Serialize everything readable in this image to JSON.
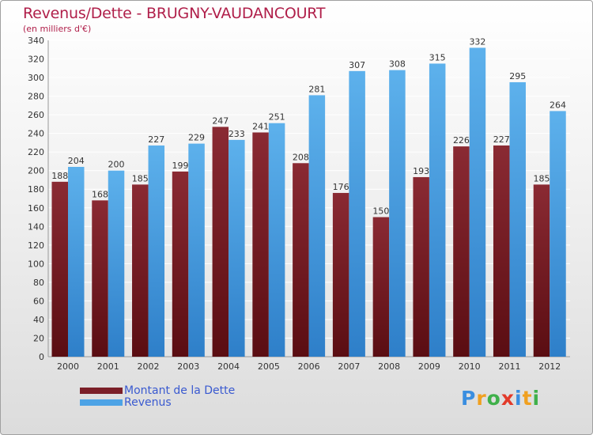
{
  "title": "Revenus/Dette - BRUGNY-VAUDANCOURT",
  "subtitle": "(en milliers d'€)",
  "legend": [
    {
      "label": "Montant de la Dette",
      "color": "#7b1f28"
    },
    {
      "label": "Revenus",
      "color": "#4da3e6"
    }
  ],
  "logo": {
    "text": "Proxiti",
    "letters": [
      {
        "ch": "P",
        "color": "#3a8ee0"
      },
      {
        "ch": "r",
        "color": "#f0a020"
      },
      {
        "ch": "o",
        "color": "#3fb04a"
      },
      {
        "ch": "x",
        "color": "#e23a2a"
      },
      {
        "ch": "i",
        "color": "#3a8ee0"
      },
      {
        "ch": "t",
        "color": "#f0a020"
      },
      {
        "ch": "i",
        "color": "#3fb04a"
      }
    ]
  },
  "colors": {
    "dette_top": "#8a2a33",
    "dette_bottom": "#5a0d12",
    "revenus_top": "#5db1ec",
    "revenus_bottom": "#2e7fc9",
    "grid": "#ffffff",
    "axis_text": "#333333"
  },
  "chart_data": {
    "type": "bar",
    "title": "Revenus/Dette - BRUGNY-VAUDANCOURT",
    "ylabel": "(en milliers d'€)",
    "categories": [
      "2000",
      "2001",
      "2002",
      "2003",
      "2004",
      "2005",
      "2006",
      "2007",
      "2008",
      "2009",
      "2010",
      "2011",
      "2012"
    ],
    "series": [
      {
        "name": "Montant de la Dette",
        "values": [
          188,
          168,
          185,
          199,
          247,
          241,
          208,
          176,
          150,
          193,
          226,
          227,
          185
        ]
      },
      {
        "name": "Revenus",
        "values": [
          204,
          200,
          227,
          229,
          233,
          251,
          281,
          307,
          308,
          315,
          332,
          295,
          264
        ]
      }
    ],
    "ylim": [
      0,
      340
    ],
    "yticks": [
      0,
      20,
      40,
      60,
      80,
      100,
      120,
      140,
      160,
      180,
      200,
      220,
      240,
      260,
      280,
      300,
      320,
      340
    ],
    "grid": true,
    "legend_position": "bottom-left"
  }
}
